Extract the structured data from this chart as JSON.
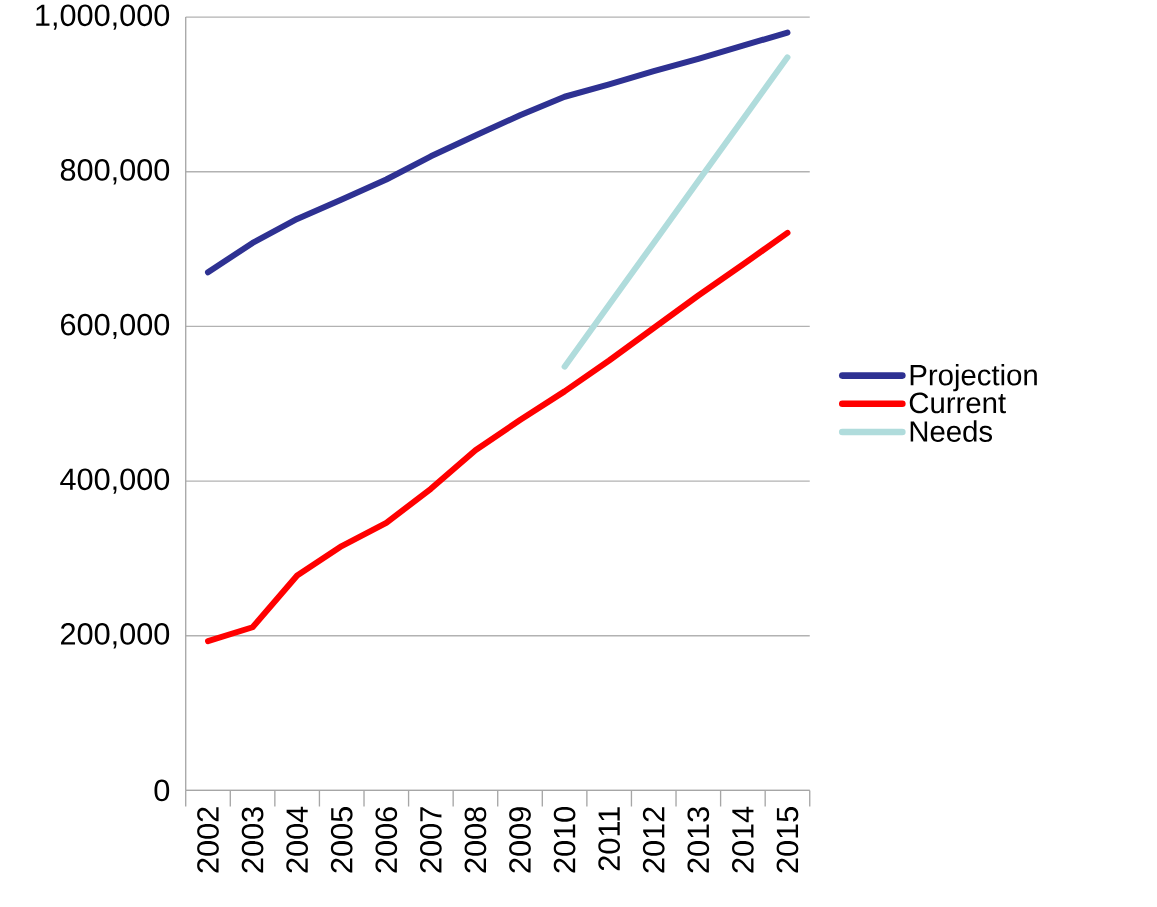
{
  "chart_data": {
    "type": "line",
    "categories": [
      "2002",
      "2003",
      "2004",
      "2005",
      "2006",
      "2007",
      "2008",
      "2009",
      "2010",
      "2011",
      "2012",
      "2013",
      "2014",
      "2015"
    ],
    "series": [
      {
        "name": "Projection",
        "color": "#2e3192",
        "values": [
          670000,
          708000,
          739000,
          764000,
          790000,
          820000,
          847000,
          873000,
          897000,
          913000,
          930000,
          946000,
          963000,
          980000
        ]
      },
      {
        "name": "Current",
        "color": "#ff0000",
        "values": [
          193000,
          211000,
          278000,
          316000,
          346000,
          390000,
          440000,
          479000,
          516000,
          556000,
          598000,
          640000,
          680000,
          721000
        ]
      },
      {
        "name": "Needs",
        "color": "#b0dcdc",
        "values": [
          null,
          null,
          null,
          null,
          null,
          null,
          null,
          null,
          548000,
          628000,
          708000,
          788000,
          868000,
          948000
        ]
      }
    ],
    "ylim": [
      0,
      1000000
    ],
    "yticks": [
      0,
      {
        "value": 200000,
        "label": "200,000"
      },
      {
        "value": 400000,
        "label": "400,000"
      },
      {
        "value": 600000,
        "label": "600,000"
      },
      {
        "value": 800000,
        "label": "800,000"
      },
      {
        "value": 1000000,
        "label": "1,000,000"
      }
    ],
    "grid": "y",
    "legend": "right",
    "line_style": "solid"
  }
}
